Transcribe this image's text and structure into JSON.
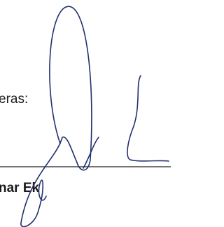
{
  "label": "eras:",
  "name": "nar Ek"
}
